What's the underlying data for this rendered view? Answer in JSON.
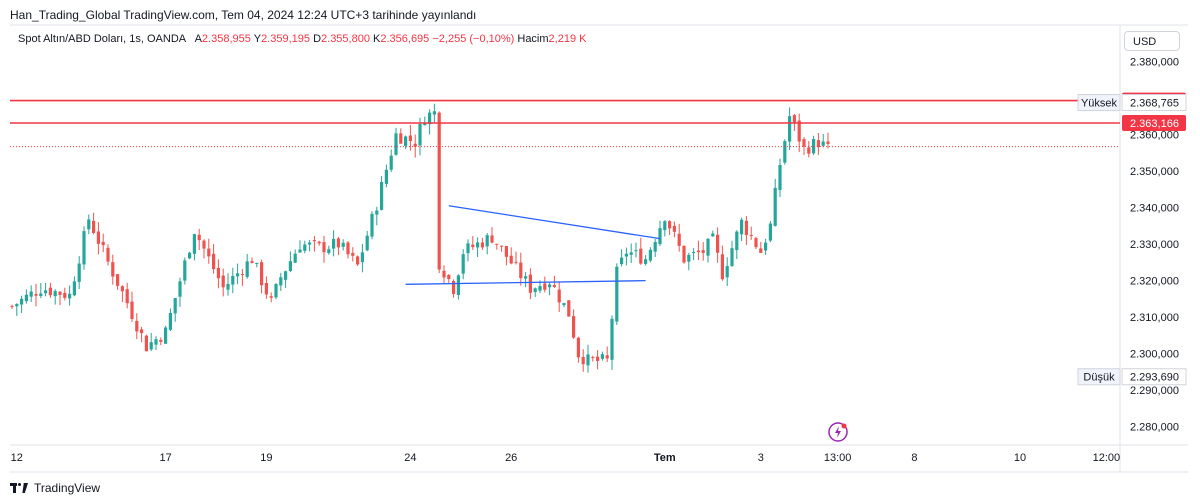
{
  "header": {
    "title": "Han_Trading_Global TradingView.com, Tem 04, 2024 12:24 UTC+3 tarihinde yayınlandı"
  },
  "infobar": {
    "symbol": "Spot Altın/ABD Doları, 1s, OANDA",
    "open_label": "A",
    "open": "2.358,955",
    "high_label": "Y",
    "high": "2.359,195",
    "low_label": "D",
    "low": "2.355,800",
    "close_label": "K",
    "close": "2.356,695",
    "change": "−2,255 (−0,10%)",
    "volume_label": "Hacim",
    "volume": "2,219 K"
  },
  "currency": "USD",
  "footer": {
    "brand": "TradingView"
  },
  "colors": {
    "up": "#26a69a",
    "down": "#ef5350",
    "level": "#f23645",
    "trend": "#2962ff",
    "text": "#131722"
  },
  "chart_data": {
    "type": "candlestick",
    "x_tick_labels": [
      "12",
      "17",
      "19",
      "24",
      "26",
      "Tem",
      "3",
      "13:00",
      "8",
      "10",
      "12:00"
    ],
    "y_tick_labels": [
      "2.380,000",
      "2.370,000",
      "2.360,000",
      "2.350,000",
      "2.340,000",
      "2.330,000",
      "2.320,000",
      "2.310,000",
      "2.300,000",
      "2.290,000",
      "2.280,000"
    ],
    "y_ticks": [
      2380,
      2370,
      2360,
      2350,
      2340,
      2330,
      2320,
      2310,
      2300,
      2290,
      2280
    ],
    "ylim": [
      2275,
      2390
    ],
    "levels": [
      {
        "value": 2369.3,
        "label": "2.369,300",
        "name": ""
      },
      {
        "value": 2368.765,
        "label": "2.368,765",
        "name": "Yüksek"
      },
      {
        "value": 2363.166,
        "label": "2.363,166",
        "name": ""
      },
      {
        "value": 2293.69,
        "label": "2.293,690",
        "name": "Düşük"
      }
    ],
    "current_price": 2356.695,
    "trendlines": [
      {
        "from": [
          91,
          2340.5
        ],
        "to": [
          135,
          2331.5
        ]
      },
      {
        "from": [
          82,
          2319
        ],
        "to": [
          132,
          2320
        ]
      }
    ],
    "anchors": [
      [
        0,
        2313
      ],
      [
        6,
        2318
      ],
      [
        12,
        2316
      ],
      [
        16,
        2337
      ],
      [
        20,
        2325
      ],
      [
        24,
        2314
      ],
      [
        28,
        2302
      ],
      [
        32,
        2306
      ],
      [
        38,
        2334
      ],
      [
        44,
        2318
      ],
      [
        50,
        2326
      ],
      [
        54,
        2314
      ],
      [
        56,
        2321
      ],
      [
        60,
        2330
      ],
      [
        64,
        2329
      ],
      [
        68,
        2330
      ],
      [
        72,
        2324
      ],
      [
        76,
        2341
      ],
      [
        80,
        2360
      ],
      [
        84,
        2358
      ],
      [
        86,
        2365
      ],
      [
        88,
        2366
      ],
      [
        89,
        2325
      ],
      [
        92,
        2318
      ],
      [
        94,
        2328
      ],
      [
        100,
        2332
      ],
      [
        104,
        2325
      ],
      [
        108,
        2318
      ],
      [
        112,
        2320
      ],
      [
        116,
        2311
      ],
      [
        118,
        2300
      ],
      [
        120,
        2298
      ],
      [
        124,
        2298
      ],
      [
        126,
        2322
      ],
      [
        128,
        2328
      ],
      [
        132,
        2326
      ],
      [
        136,
        2338
      ],
      [
        140,
        2326
      ],
      [
        144,
        2328
      ],
      [
        146,
        2331
      ],
      [
        148,
        2322
      ],
      [
        152,
        2336
      ],
      [
        156,
        2328
      ],
      [
        158,
        2335
      ],
      [
        160,
        2352
      ],
      [
        162,
        2365
      ],
      [
        165,
        2356
      ],
      [
        168,
        2358
      ],
      [
        170,
        2356
      ]
    ]
  }
}
